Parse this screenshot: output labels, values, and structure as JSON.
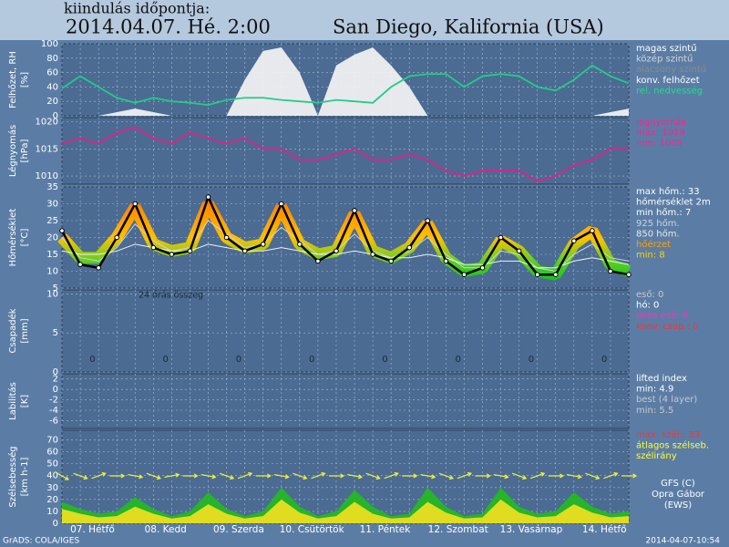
{
  "header": {
    "caption": "kiindulás időpontja:",
    "date": "2014.04.07. Hé. 2:00",
    "location": "San Diego, Kalifornia (USA)"
  },
  "footer": {
    "left": "GrADS: COLA/IGES",
    "right": "2014-04-07-10:54"
  },
  "credits": [
    "GFS (C)",
    "Opra Gábor",
    "(EWS)"
  ],
  "x_axis": {
    "xlim": [
      0,
      186
    ],
    "x": [
      0,
      6,
      12,
      18,
      24,
      30,
      36,
      42,
      48,
      54,
      60,
      66,
      72,
      78,
      84,
      90,
      96,
      102,
      108,
      114,
      120,
      126,
      132,
      138,
      144,
      150,
      156,
      162,
      168,
      174,
      180,
      186
    ],
    "xticks": [
      {
        "value": 10,
        "label": "07. Hétfő"
      },
      {
        "value": 34,
        "label": "08. Kedd"
      },
      {
        "value": 58,
        "label": "09. Szerda"
      },
      {
        "value": 82,
        "label": "10. Csütörtök"
      },
      {
        "value": 106,
        "label": "11. Péntek"
      },
      {
        "value": 130,
        "label": "12. Szombat"
      },
      {
        "value": 154,
        "label": "13. Vasárnap"
      },
      {
        "value": 178,
        "label": "14. Hétfő"
      }
    ]
  },
  "chart_data": [
    {
      "type": "area-line",
      "ylabel": [
        "Felhőzet, RH",
        "[%]"
      ],
      "ylim": [
        0,
        100
      ],
      "yticks": [
        0,
        20,
        40,
        60,
        80,
        100
      ],
      "grid": true,
      "series": [
        {
          "style": "area",
          "color": "#f4f4f4",
          "values": [
            0,
            0,
            0,
            5,
            10,
            5,
            0,
            0,
            0,
            0,
            50,
            90,
            95,
            60,
            0,
            70,
            85,
            95,
            70,
            40,
            0,
            0,
            0,
            0,
            0,
            0,
            0,
            0,
            0,
            0,
            5,
            10
          ]
        },
        {
          "style": "line",
          "color": "#22cc88",
          "values": [
            38,
            55,
            40,
            25,
            18,
            25,
            20,
            18,
            15,
            22,
            25,
            25,
            22,
            20,
            18,
            22,
            20,
            18,
            40,
            55,
            58,
            58,
            40,
            55,
            58,
            55,
            40,
            35,
            50,
            70,
            55,
            45
          ]
        }
      ],
      "legend": [
        {
          "label": "magas szintű",
          "color": "#ffffff"
        },
        {
          "label": "közép szintű",
          "color": "#d4d4d4"
        },
        {
          "label": "alacsony szintű",
          "color": "#8a8a8a"
        },
        {
          "label": "konv. felhőzet",
          "color": "#ffffff"
        },
        {
          "label": "rel. nedvesség",
          "color": "#22dd88"
        }
      ]
    },
    {
      "type": "line",
      "ylabel": [
        "Légnyomás",
        "[hPa]"
      ],
      "ylim": [
        1008.5,
        1020.8
      ],
      "yticks": [
        1010,
        1015,
        1020
      ],
      "grid": true,
      "series": [
        {
          "style": "line",
          "color": "#e0208a",
          "values": [
            1016,
            1017,
            1016,
            1018,
            1019,
            1017,
            1016,
            1018,
            1017,
            1016,
            1017,
            1015,
            1015,
            1013,
            1013,
            1014,
            1015,
            1013,
            1013,
            1014,
            1013,
            1011,
            1010,
            1011,
            1011,
            1011,
            1009,
            1010,
            1012,
            1013,
            1015,
            1015
          ]
        }
      ],
      "legend": [
        {
          "label": "légnyomás",
          "color": "#ff2090"
        },
        {
          "label": "max: 1019",
          "color": "#ff2090"
        },
        {
          "label": "min: 1009",
          "color": "#ff2090"
        }
      ]
    },
    {
      "type": "line",
      "ylabel": [
        "Hőmérséklet",
        "[°C]"
      ],
      "ylim": [
        5,
        35
      ],
      "yticks": [
        5,
        10,
        15,
        20,
        25,
        30,
        35
      ],
      "grid": true,
      "series": [
        {
          "style": "band",
          "color": "#ff9000",
          "values": [
            20,
            14,
            14,
            20,
            29,
            18,
            16,
            17,
            30,
            20,
            17,
            18,
            29,
            18,
            15,
            16,
            27,
            16,
            14,
            17,
            24,
            14,
            10,
            11,
            19,
            16,
            10,
            9,
            18,
            22,
            12,
            10
          ]
        },
        {
          "style": "thin",
          "color": "#c8d4e0",
          "values": [
            20,
            14,
            13,
            17,
            24,
            19,
            16,
            17,
            25,
            21,
            17,
            18,
            23,
            19,
            15,
            16,
            21,
            16,
            14,
            16,
            20,
            15,
            11,
            11,
            16,
            15,
            11,
            10,
            15,
            18,
            14,
            13
          ]
        },
        {
          "style": "thin",
          "color": "#f0f0f0",
          "values": [
            16,
            15,
            15,
            16,
            18,
            17,
            16,
            16,
            18,
            17,
            16,
            16,
            17,
            16,
            15,
            15,
            16,
            15,
            14,
            14,
            15,
            14,
            12,
            12,
            13,
            13,
            11,
            11,
            13,
            14,
            13,
            12
          ]
        },
        {
          "style": "dots",
          "color": "#000000",
          "values": [
            22,
            12,
            11,
            20,
            30,
            17,
            15,
            16,
            32,
            20,
            16,
            18,
            30,
            18,
            13,
            16,
            28,
            15,
            13,
            17,
            25,
            13,
            9,
            11,
            20,
            16,
            9,
            9,
            19,
            22,
            10,
            9
          ]
        }
      ],
      "legend": [
        {
          "label": "max hőm.: 33",
          "color": "#ffffff"
        },
        {
          "label": "hőmérséklet 2m",
          "color": "#ffffff"
        },
        {
          "label": "min hőm.: 7",
          "color": "#ffffff"
        },
        {
          "label": "925 hőm.",
          "color": "#c8d4e0"
        },
        {
          "label": "850 hőm.",
          "color": "#e8e8e8"
        },
        {
          "label": "hőérzet",
          "color": "#ffa000"
        },
        {
          "label": "min: 8",
          "color": "#ffd000"
        }
      ]
    },
    {
      "type": "labels",
      "ylabel": [
        "Csapadék",
        "[mm]"
      ],
      "ylim": [
        0,
        10.5
      ],
      "yticks": [
        0,
        5,
        10
      ],
      "grid": true,
      "annotation": "24 órás összeg",
      "x": [
        10,
        34,
        58,
        82,
        106,
        130,
        154,
        178
      ],
      "values": [
        0,
        0,
        0,
        0,
        0,
        0,
        0,
        0
      ],
      "legend": [
        {
          "label": "eső: 0",
          "color": "#c8c8c8"
        },
        {
          "label": "hó: 0",
          "color": "#ffffff"
        },
        {
          "label": "ónos eső: 0",
          "color": "#ff30c0"
        },
        {
          "label": "konv. csap.: 0",
          "color": "#ff3030"
        }
      ]
    },
    {
      "type": "empty",
      "ylabel": [
        "Labilitás",
        "[K]"
      ],
      "ylim": [
        -7.5,
        3
      ],
      "yticks": [
        2,
        0,
        -2,
        -4,
        -6
      ],
      "grid": true,
      "legend": [
        {
          "label": "lifted index",
          "color": "#ffffff"
        },
        {
          "label": "min: 4.9",
          "color": "#ffffff"
        },
        {
          "label": "best (4 layer)",
          "color": "#c8c8c8"
        },
        {
          "label": "min: 5.5",
          "color": "#c8c8c8"
        }
      ]
    },
    {
      "type": "wind",
      "ylabel": [
        "Szélsebesség",
        "[km h-1]"
      ],
      "ylim": [
        0,
        78
      ],
      "yticks": [
        0,
        10,
        20,
        30,
        40,
        50,
        60,
        70
      ],
      "grid": true,
      "series": [
        {
          "style": "area",
          "color": "#22bb22",
          "values": [
            18,
            12,
            8,
            10,
            22,
            12,
            6,
            10,
            26,
            12,
            6,
            10,
            30,
            14,
            6,
            10,
            28,
            14,
            6,
            8,
            30,
            14,
            6,
            8,
            30,
            14,
            8,
            10,
            26,
            14,
            8,
            10
          ]
        },
        {
          "style": "area",
          "color": "#f0e020",
          "values": [
            12,
            8,
            5,
            6,
            14,
            8,
            4,
            6,
            16,
            8,
            4,
            6,
            20,
            9,
            4,
            6,
            18,
            8,
            4,
            5,
            18,
            9,
            4,
            5,
            20,
            9,
            5,
            6,
            16,
            9,
            5,
            6
          ]
        }
      ],
      "direction": [
        300,
        290,
        250,
        270,
        280,
        290,
        260,
        270,
        280,
        290,
        250,
        270,
        280,
        290,
        250,
        270,
        280,
        290,
        250,
        270,
        280,
        290,
        250,
        270,
        280,
        290,
        250,
        270,
        280,
        290,
        250,
        270
      ],
      "direction_color": "#f0f040",
      "legend": [
        {
          "label": "max. szél.: 33",
          "color": "#ff3030"
        },
        {
          "label": "átlagos szélseb.",
          "color": "#ffff30"
        },
        {
          "label": "szélirány",
          "color": "#ffff30"
        }
      ]
    }
  ]
}
